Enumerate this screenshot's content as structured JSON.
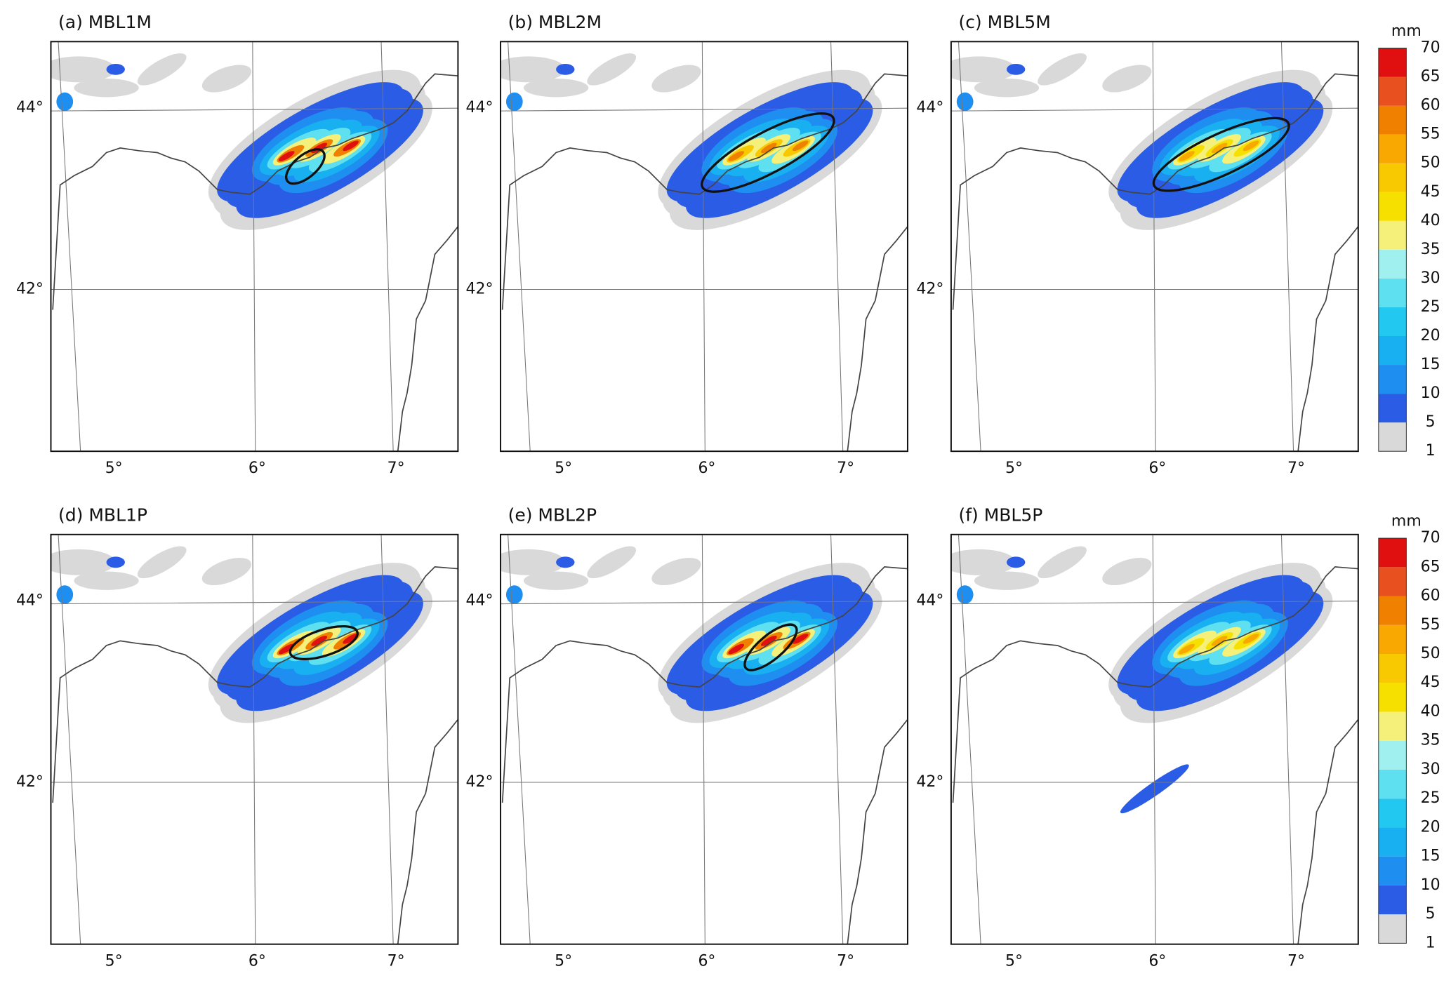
{
  "panels": [
    {
      "label": "(a) MBL1M"
    },
    {
      "label": "(b) MBL2M"
    },
    {
      "label": "(c) MBL5M"
    },
    {
      "label": "(d) MBL1P"
    },
    {
      "label": "(e) MBL2P"
    },
    {
      "label": "(f) MBL5P"
    }
  ],
  "lon_labels": [
    "5°",
    "6°",
    "7°"
  ],
  "lat_labels": [
    "44°",
    "42°"
  ],
  "colorbar": {
    "unit": "mm",
    "levels": [
      1,
      5,
      10,
      15,
      20,
      25,
      30,
      35,
      40,
      45,
      50,
      55,
      60,
      65,
      70
    ],
    "colors": [
      "#d9d9d9",
      "#2a5ce6",
      "#1e8ff0",
      "#18b0f0",
      "#22c8f0",
      "#5ee0f0",
      "#a0f0f0",
      "#f5f07a",
      "#f5e000",
      "#f8c800",
      "#f8a800",
      "#f08000",
      "#e85020",
      "#e01010"
    ]
  }
}
